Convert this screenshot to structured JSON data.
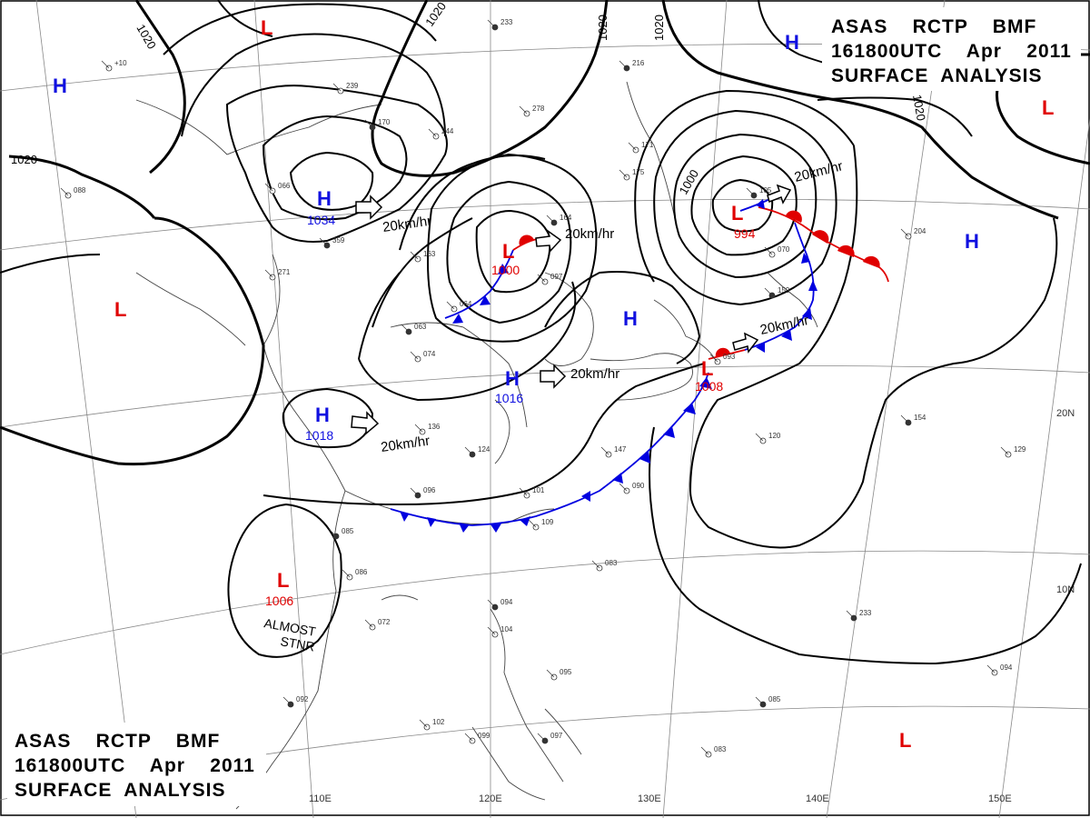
{
  "header": {
    "lines": [
      "ASAS    RCTP    BMF",
      "161800UTC    Apr    2011",
      "SURFACE  ANALYSIS"
    ]
  },
  "footer": {
    "lines": [
      "ASAS    RCTP    BMF",
      "161800UTC    Apr    2011",
      "SURFACE  ANALYSIS"
    ]
  },
  "colors": {
    "high": "#1010e0",
    "low": "#e00000",
    "cold_front": "#0000e0",
    "warm_front": "#e00000",
    "isobar": "#000000",
    "coast": "#444444",
    "grid": "#888888"
  },
  "pressure_centers": [
    {
      "type": "H",
      "letter": "H",
      "value": "1034",
      "motion": "20km/hr"
    },
    {
      "type": "L",
      "letter": "L",
      "value": "1000",
      "motion": "20km/hr"
    },
    {
      "type": "L",
      "letter": "L",
      "value": "994",
      "motion": "20km/hr"
    },
    {
      "type": "H",
      "letter": "H",
      "value": "",
      "motion": ""
    },
    {
      "type": "H",
      "letter": "H",
      "value": "1016",
      "motion": "20km/hr"
    },
    {
      "type": "H",
      "letter": "H",
      "value": "1018",
      "motion": "20km/hr"
    },
    {
      "type": "L",
      "letter": "L",
      "value": "1008",
      "motion": "20km/hr"
    },
    {
      "type": "L",
      "letter": "L",
      "value": "1006",
      "motion": ""
    },
    {
      "type": "H",
      "letter": "H",
      "value": "",
      "motion": ""
    },
    {
      "type": "H",
      "letter": "H",
      "value": "",
      "motion": ""
    },
    {
      "type": "H",
      "letter": "H",
      "value": "",
      "motion": ""
    },
    {
      "type": "L",
      "letter": "L",
      "value": "",
      "motion": ""
    },
    {
      "type": "L",
      "letter": "L",
      "value": "",
      "motion": ""
    },
    {
      "type": "L",
      "letter": "L",
      "value": "",
      "motion": ""
    },
    {
      "type": "L",
      "letter": "L",
      "value": "",
      "motion": ""
    }
  ],
  "isobar_labels": [
    "1020",
    "1020",
    "1020",
    "1020",
    "1020",
    "1000"
  ],
  "longitude_labels": [
    "110E",
    "120E",
    "130E",
    "140E",
    "150E"
  ],
  "latitude_labels": [
    "20N",
    "10N"
  ],
  "notes": {
    "stationary_1": "ALMOST",
    "stationary_2": "STNR"
  },
  "station_samples": [
    "233",
    "+10",
    "239",
    "170",
    "244",
    "278",
    "216",
    "171",
    "175",
    "164",
    "097",
    "064",
    "063",
    "074",
    "136",
    "124",
    "147",
    "090",
    "096",
    "101",
    "109",
    "085",
    "086",
    "072",
    "094",
    "104",
    "083",
    "092",
    "102",
    "099",
    "097",
    "095",
    "120",
    "154",
    "129",
    "204",
    "105",
    "070",
    "093",
    "159",
    "163",
    "271",
    "359",
    "066",
    "088",
    "085",
    "083",
    "094"
  ]
}
